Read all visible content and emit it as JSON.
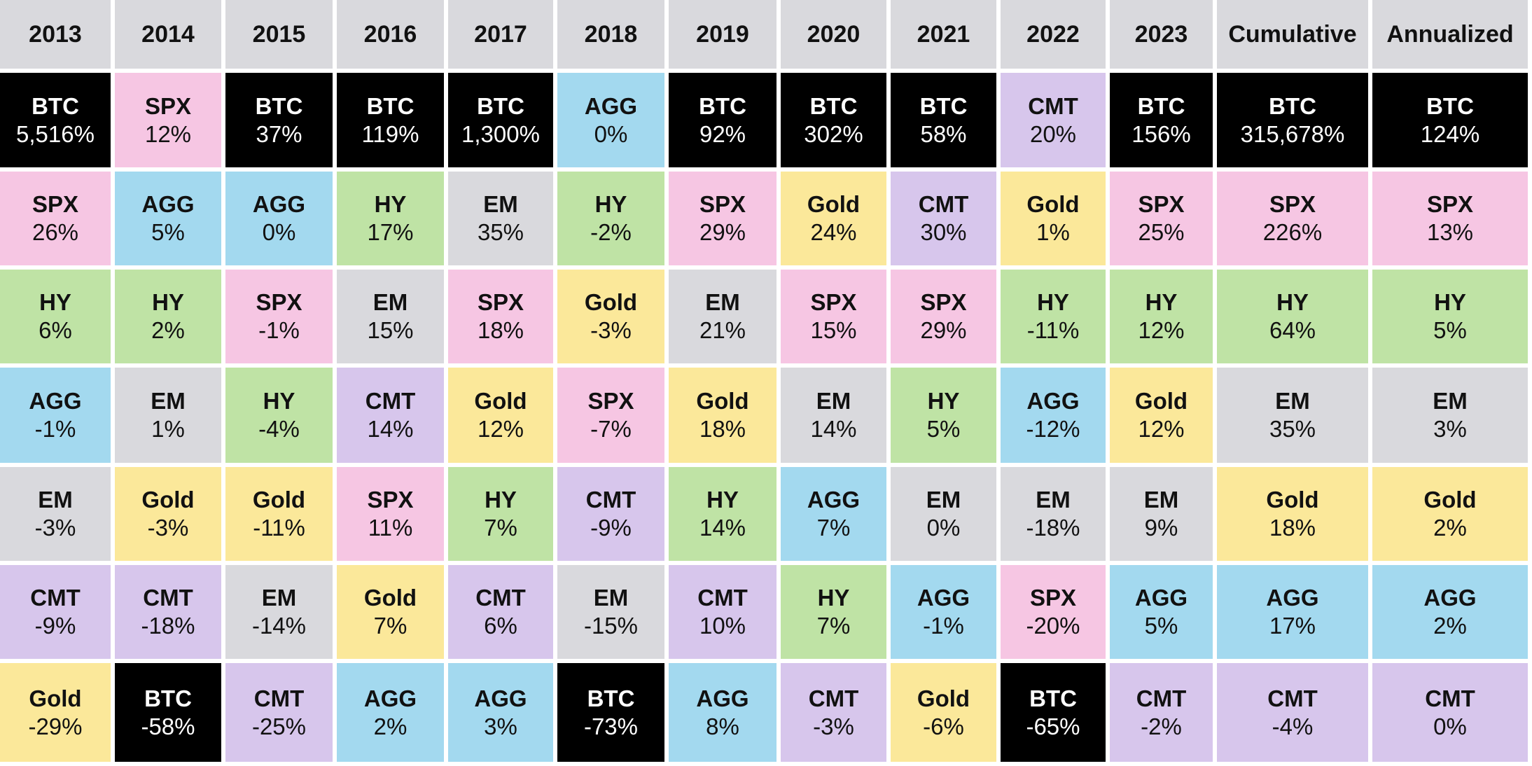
{
  "chart_data": {
    "type": "table",
    "columns": [
      "2013",
      "2014",
      "2015",
      "2016",
      "2017",
      "2018",
      "2019",
      "2020",
      "2021",
      "2022",
      "2023",
      "Cumulative",
      "Annualized"
    ],
    "rows": [
      [
        [
          "BTC",
          "5,516%"
        ],
        [
          "SPX",
          "12%"
        ],
        [
          "BTC",
          "37%"
        ],
        [
          "BTC",
          "119%"
        ],
        [
          "BTC",
          "1,300%"
        ],
        [
          "AGG",
          "0%"
        ],
        [
          "BTC",
          "92%"
        ],
        [
          "BTC",
          "302%"
        ],
        [
          "BTC",
          "58%"
        ],
        [
          "CMT",
          "20%"
        ],
        [
          "BTC",
          "156%"
        ],
        [
          "BTC",
          "315,678%"
        ],
        [
          "BTC",
          "124%"
        ]
      ],
      [
        [
          "SPX",
          "26%"
        ],
        [
          "AGG",
          "5%"
        ],
        [
          "AGG",
          "0%"
        ],
        [
          "HY",
          "17%"
        ],
        [
          "EM",
          "35%"
        ],
        [
          "HY",
          "-2%"
        ],
        [
          "SPX",
          "29%"
        ],
        [
          "Gold",
          "24%"
        ],
        [
          "CMT",
          "30%"
        ],
        [
          "Gold",
          "1%"
        ],
        [
          "SPX",
          "25%"
        ],
        [
          "SPX",
          "226%"
        ],
        [
          "SPX",
          "13%"
        ]
      ],
      [
        [
          "HY",
          "6%"
        ],
        [
          "HY",
          "2%"
        ],
        [
          "SPX",
          "-1%"
        ],
        [
          "EM",
          "15%"
        ],
        [
          "SPX",
          "18%"
        ],
        [
          "Gold",
          "-3%"
        ],
        [
          "EM",
          "21%"
        ],
        [
          "SPX",
          "15%"
        ],
        [
          "SPX",
          "29%"
        ],
        [
          "HY",
          "-11%"
        ],
        [
          "HY",
          "12%"
        ],
        [
          "HY",
          "64%"
        ],
        [
          "HY",
          "5%"
        ]
      ],
      [
        [
          "AGG",
          "-1%"
        ],
        [
          "EM",
          "1%"
        ],
        [
          "HY",
          "-4%"
        ],
        [
          "CMT",
          "14%"
        ],
        [
          "Gold",
          "12%"
        ],
        [
          "SPX",
          "-7%"
        ],
        [
          "Gold",
          "18%"
        ],
        [
          "EM",
          "14%"
        ],
        [
          "HY",
          "5%"
        ],
        [
          "AGG",
          "-12%"
        ],
        [
          "Gold",
          "12%"
        ],
        [
          "EM",
          "35%"
        ],
        [
          "EM",
          "3%"
        ]
      ],
      [
        [
          "EM",
          "-3%"
        ],
        [
          "Gold",
          "-3%"
        ],
        [
          "Gold",
          "-11%"
        ],
        [
          "SPX",
          "11%"
        ],
        [
          "HY",
          "7%"
        ],
        [
          "CMT",
          "-9%"
        ],
        [
          "HY",
          "14%"
        ],
        [
          "AGG",
          "7%"
        ],
        [
          "EM",
          "0%"
        ],
        [
          "EM",
          "-18%"
        ],
        [
          "EM",
          "9%"
        ],
        [
          "Gold",
          "18%"
        ],
        [
          "Gold",
          "2%"
        ]
      ],
      [
        [
          "CMT",
          "-9%"
        ],
        [
          "CMT",
          "-18%"
        ],
        [
          "EM",
          "-14%"
        ],
        [
          "Gold",
          "7%"
        ],
        [
          "CMT",
          "6%"
        ],
        [
          "EM",
          "-15%"
        ],
        [
          "CMT",
          "10%"
        ],
        [
          "HY",
          "7%"
        ],
        [
          "AGG",
          "-1%"
        ],
        [
          "SPX",
          "-20%"
        ],
        [
          "AGG",
          "5%"
        ],
        [
          "AGG",
          "17%"
        ],
        [
          "AGG",
          "2%"
        ]
      ],
      [
        [
          "Gold",
          "-29%"
        ],
        [
          "BTC",
          "-58%"
        ],
        [
          "CMT",
          "-25%"
        ],
        [
          "AGG",
          "2%"
        ],
        [
          "AGG",
          "3%"
        ],
        [
          "BTC",
          "-73%"
        ],
        [
          "AGG",
          "8%"
        ],
        [
          "CMT",
          "-3%"
        ],
        [
          "Gold",
          "-6%"
        ],
        [
          "BTC",
          "-65%"
        ],
        [
          "CMT",
          "-2%"
        ],
        [
          "CMT",
          "-4%"
        ],
        [
          "CMT",
          "0%"
        ]
      ]
    ],
    "asset_colors": {
      "BTC": "#000000",
      "SPX": "#f6c6e3",
      "AGG": "#a3d9ef",
      "HY": "#bfe3a5",
      "EM": "#d9d9dd",
      "Gold": "#fbe89a",
      "CMT": "#d7c6ec"
    },
    "header_color": "#d9d9dd"
  }
}
